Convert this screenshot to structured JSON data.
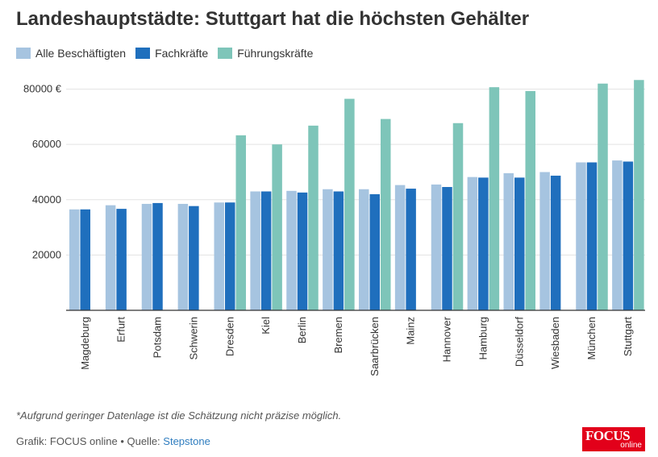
{
  "title": "Landeshauptstädte: Stuttgart hat die höchsten Gehälter",
  "footnote": "*Aufgrund geringer Datenlage ist die Schätzung nicht präzise möglich.",
  "source": {
    "prefix": "Grafik: FOCUS online • Quelle: ",
    "link_label": "Stepstone"
  },
  "logo": {
    "line1": "FOCUS",
    "line2": "online"
  },
  "chart_data": {
    "type": "bar",
    "title": "Landeshauptstädte: Stuttgart hat die höchsten Gehälter",
    "xlabel": "",
    "ylabel": "",
    "ylim": [
      0,
      86000
    ],
    "yticks": [
      {
        "value": 20000,
        "label": "20000"
      },
      {
        "value": 40000,
        "label": "40000"
      },
      {
        "value": 60000,
        "label": "60000"
      },
      {
        "value": 80000,
        "label": "80000 €"
      }
    ],
    "grid": true,
    "legend_position": "top-left",
    "categories": [
      "Magdeburg",
      "Erfurt",
      "Potsdam",
      "Schwerin",
      "Dresden",
      "Kiel",
      "Berlin",
      "Bremen",
      "Saarbrücken",
      "Mainz",
      "Hannover",
      "Hamburg",
      "Düsseldorf",
      "Wiesbaden",
      "München",
      "Stuttgart"
    ],
    "series": [
      {
        "name": "Alle Beschäftigten",
        "color": "#a6c4e0",
        "values": [
          36500,
          38000,
          38500,
          38500,
          39000,
          43000,
          43200,
          43800,
          43800,
          45300,
          45500,
          48200,
          49600,
          50000,
          53500,
          54200
        ]
      },
      {
        "name": "Fachkräfte",
        "color": "#1f6fbd",
        "values": [
          36500,
          36700,
          38800,
          37700,
          39000,
          43000,
          42600,
          43000,
          42000,
          44000,
          44600,
          48000,
          48000,
          48700,
          53500,
          53800
        ]
      },
      {
        "name": "Führungskräfte",
        "color": "#7ec5b9",
        "values": [
          null,
          null,
          null,
          null,
          63300,
          60000,
          66800,
          76500,
          69200,
          null,
          67700,
          80700,
          79300,
          null,
          82000,
          83300
        ]
      }
    ]
  }
}
